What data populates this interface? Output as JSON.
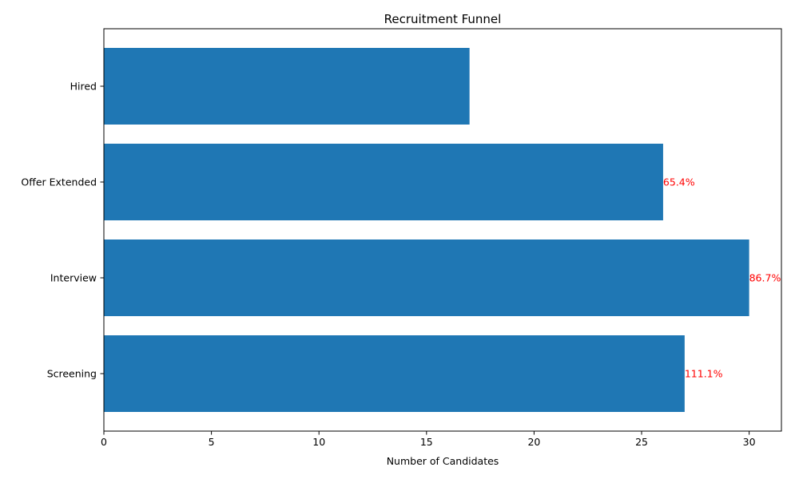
{
  "chart_data": {
    "type": "bar",
    "orientation": "horizontal",
    "title": "Recruitment Funnel",
    "xlabel": "Number of Candidates",
    "ylabel": "",
    "categories": [
      "Screening",
      "Interview",
      "Offer Extended",
      "Hired"
    ],
    "values": [
      27,
      30,
      26,
      17
    ],
    "bar_labels": [
      "111.1%",
      "86.7%",
      "65.4%",
      ""
    ],
    "xlim": [
      0,
      31.5
    ],
    "xticks": [
      0,
      5,
      10,
      15,
      20,
      25,
      30
    ],
    "grid": false,
    "legend": "none",
    "colors": {
      "bar": "#1f77b4",
      "label": "#ff0000",
      "axis": "#000000"
    }
  }
}
